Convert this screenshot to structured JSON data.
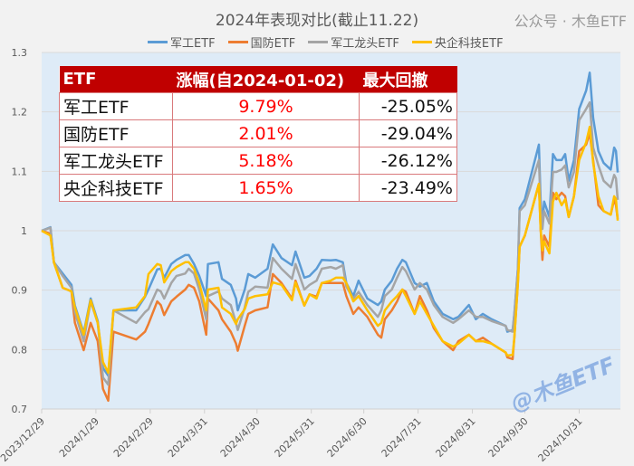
{
  "chart_data": {
    "type": "line",
    "title": "2024年表现对比(截止11.22)",
    "ylim": [
      0.7,
      1.3
    ],
    "yticks": [
      0.7,
      0.8,
      0.9,
      1,
      1.1,
      1.2,
      1.3
    ],
    "xticks": [
      "2023/12/29",
      "2024/1/29",
      "2024/2/29",
      "2024/3/31",
      "2024/4/30",
      "2024/5/31",
      "2024/6/30",
      "2024/7/31",
      "2024/8/31",
      "2024/9/30",
      "2024/10/31"
    ],
    "grid": "horizontal",
    "legend": "top",
    "x": [
      "2023-12-29",
      "2024-01-03",
      "2024-01-05",
      "2024-01-10",
      "2024-01-15",
      "2024-01-17",
      "2024-01-22",
      "2024-01-26",
      "2024-01-30",
      "2024-02-02",
      "2024-02-05",
      "2024-02-08",
      "2024-02-21",
      "2024-02-26",
      "2024-02-28",
      "2024-03-04",
      "2024-03-06",
      "2024-03-08",
      "2024-03-12",
      "2024-03-15",
      "2024-03-20",
      "2024-03-22",
      "2024-03-25",
      "2024-03-28",
      "2024-04-01",
      "2024-04-02",
      "2024-04-08",
      "2024-04-10",
      "2024-04-15",
      "2024-04-18",
      "2024-04-19",
      "2024-04-23",
      "2024-04-25",
      "2024-04-29",
      "2024-05-06",
      "2024-05-09",
      "2024-05-14",
      "2024-05-20",
      "2024-05-22",
      "2024-05-27",
      "2024-05-30",
      "2024-06-03",
      "2024-06-06",
      "2024-06-11",
      "2024-06-14",
      "2024-06-18",
      "2024-06-20",
      "2024-06-24",
      "2024-06-27",
      "2024-07-02",
      "2024-07-08",
      "2024-07-10",
      "2024-07-12",
      "2024-07-16",
      "2024-07-19",
      "2024-07-22",
      "2024-07-24",
      "2024-07-29",
      "2024-08-01",
      "2024-08-05",
      "2024-08-09",
      "2024-08-14",
      "2024-08-20",
      "2024-08-23",
      "2024-08-29",
      "2024-09-02",
      "2024-09-06",
      "2024-09-11",
      "2024-09-19",
      "2024-09-20",
      "2024-09-23",
      "2024-09-24",
      "2024-09-26",
      "2024-09-27",
      "2024-09-30",
      "2024-10-08",
      "2024-10-09",
      "2024-10-10",
      "2024-10-11",
      "2024-10-14",
      "2024-10-16",
      "2024-10-18",
      "2024-10-21",
      "2024-10-23",
      "2024-10-25",
      "2024-10-28",
      "2024-10-31",
      "2024-11-04",
      "2024-11-06",
      "2024-11-08",
      "2024-11-11",
      "2024-11-14",
      "2024-11-18",
      "2024-11-20",
      "2024-11-21",
      "2024-11-22"
    ],
    "series": [
      {
        "name": "军工ETF",
        "color": "#5b9bd5",
        "values": [
          1.0,
          1.006,
          0.947,
          0.928,
          0.909,
          0.874,
          0.828,
          0.886,
          0.848,
          0.769,
          0.756,
          0.866,
          0.866,
          0.889,
          0.901,
          0.935,
          0.936,
          0.921,
          0.944,
          0.951,
          0.959,
          0.959,
          0.944,
          0.924,
          0.89,
          0.944,
          0.947,
          0.919,
          0.909,
          0.886,
          0.866,
          0.901,
          0.927,
          0.921,
          0.936,
          0.977,
          0.954,
          0.942,
          0.965,
          0.921,
          0.924,
          0.936,
          0.951,
          0.95,
          0.951,
          0.947,
          0.912,
          0.89,
          0.916,
          0.886,
          0.875,
          0.881,
          0.901,
          0.916,
          0.936,
          0.951,
          0.947,
          0.912,
          0.906,
          0.912,
          0.881,
          0.86,
          0.851,
          0.855,
          0.875,
          0.851,
          0.86,
          0.851,
          0.84,
          0.83,
          0.833,
          0.86,
          0.936,
          1.038,
          1.053,
          1.145,
          1.053,
          1.012,
          1.049,
          1.023,
          1.129,
          1.119,
          1.119,
          1.129,
          1.084,
          1.119,
          1.205,
          1.236,
          1.266,
          1.19,
          1.134,
          1.114,
          1.103,
          1.14,
          1.134,
          1.098
        ]
      },
      {
        "name": "国防ETF",
        "color": "#ed7d31",
        "values": [
          1.0,
          0.995,
          0.947,
          0.904,
          0.898,
          0.845,
          0.799,
          0.845,
          0.814,
          0.734,
          0.714,
          0.83,
          0.817,
          0.83,
          0.843,
          0.881,
          0.875,
          0.858,
          0.881,
          0.889,
          0.901,
          0.909,
          0.904,
          0.881,
          0.825,
          0.886,
          0.866,
          0.851,
          0.83,
          0.81,
          0.798,
          0.84,
          0.86,
          0.866,
          0.871,
          0.927,
          0.912,
          0.886,
          0.916,
          0.874,
          0.893,
          0.889,
          0.912,
          0.912,
          0.912,
          0.912,
          0.89,
          0.86,
          0.871,
          0.855,
          0.825,
          0.82,
          0.851,
          0.866,
          0.881,
          0.901,
          0.897,
          0.86,
          0.89,
          0.866,
          0.836,
          0.814,
          0.799,
          0.814,
          0.825,
          0.814,
          0.82,
          0.81,
          0.795,
          0.787,
          0.784,
          0.82,
          0.912,
          0.973,
          0.992,
          1.079,
          1.003,
          0.951,
          0.992,
          0.973,
          1.064,
          1.053,
          1.064,
          1.058,
          1.023,
          1.058,
          1.134,
          1.145,
          1.164,
          1.119,
          1.043,
          1.033,
          1.027,
          1.053,
          1.043,
          1.02
        ]
      },
      {
        "name": "军工龙头ETF",
        "color": "#a5a5a5",
        "values": [
          1.0,
          1.005,
          0.947,
          0.924,
          0.904,
          0.863,
          0.814,
          0.881,
          0.845,
          0.753,
          0.741,
          0.866,
          0.845,
          0.863,
          0.868,
          0.901,
          0.898,
          0.886,
          0.912,
          0.924,
          0.928,
          0.936,
          0.928,
          0.901,
          0.851,
          0.89,
          0.898,
          0.886,
          0.875,
          0.845,
          0.833,
          0.871,
          0.897,
          0.906,
          0.904,
          0.954,
          0.936,
          0.919,
          0.944,
          0.901,
          0.909,
          0.916,
          0.936,
          0.939,
          0.936,
          0.942,
          0.906,
          0.886,
          0.897,
          0.875,
          0.855,
          0.866,
          0.89,
          0.901,
          0.921,
          0.939,
          0.932,
          0.901,
          0.912,
          0.901,
          0.875,
          0.855,
          0.845,
          0.851,
          0.866,
          0.855,
          0.855,
          0.848,
          0.84,
          0.833,
          0.83,
          0.86,
          0.936,
          1.033,
          1.043,
          1.119,
          1.043,
          1.003,
          1.033,
          1.012,
          1.099,
          1.099,
          1.103,
          1.11,
          1.073,
          1.099,
          1.186,
          1.205,
          1.216,
          1.14,
          1.11,
          1.084,
          1.073,
          1.094,
          1.088,
          1.052
        ]
      },
      {
        "name": "央企科技ETF",
        "color": "#ffc000",
        "values": [
          1.0,
          0.992,
          0.947,
          0.904,
          0.898,
          0.871,
          0.825,
          0.883,
          0.845,
          0.779,
          0.761,
          0.866,
          0.871,
          0.89,
          0.927,
          0.944,
          0.942,
          0.913,
          0.932,
          0.939,
          0.947,
          0.947,
          0.936,
          0.912,
          0.866,
          0.901,
          0.904,
          0.871,
          0.86,
          0.843,
          0.851,
          0.868,
          0.886,
          0.89,
          0.893,
          0.913,
          0.909,
          0.883,
          0.913,
          0.874,
          0.893,
          0.886,
          0.912,
          0.916,
          0.921,
          0.921,
          0.912,
          0.881,
          0.89,
          0.866,
          0.84,
          0.845,
          0.866,
          0.881,
          0.89,
          0.901,
          0.89,
          0.86,
          0.881,
          0.86,
          0.84,
          0.814,
          0.805,
          0.81,
          0.825,
          0.814,
          0.814,
          0.81,
          0.795,
          0.79,
          0.791,
          0.82,
          0.912,
          0.973,
          0.992,
          1.079,
          1.003,
          0.967,
          0.982,
          0.962,
          1.049,
          1.064,
          1.043,
          1.053,
          1.023,
          1.058,
          1.119,
          1.149,
          1.175,
          1.114,
          1.058,
          1.033,
          1.027,
          1.058,
          1.053,
          1.017
        ]
      }
    ]
  },
  "table": {
    "headers": [
      "ETF",
      "涨幅(自2024-01-02)",
      "最大回撤"
    ],
    "rows": [
      {
        "name": "军工ETF",
        "gain": "9.79%",
        "drawdown": "-25.05%"
      },
      {
        "name": "国防ETF",
        "gain": "2.01%",
        "drawdown": "-29.04%"
      },
      {
        "name": "军工龙头ETF",
        "gain": "5.18%",
        "drawdown": "-26.12%"
      },
      {
        "name": "央企科技ETF",
        "gain": "1.65%",
        "drawdown": "-23.49%"
      }
    ]
  },
  "watermarks": {
    "handle": "@木鱼ETF",
    "account": "公众号 · 木鱼ETF"
  },
  "colors": {
    "plot_bg": "#deebf7",
    "header_bg": "#c00000",
    "gain_text": "#ff0000"
  }
}
